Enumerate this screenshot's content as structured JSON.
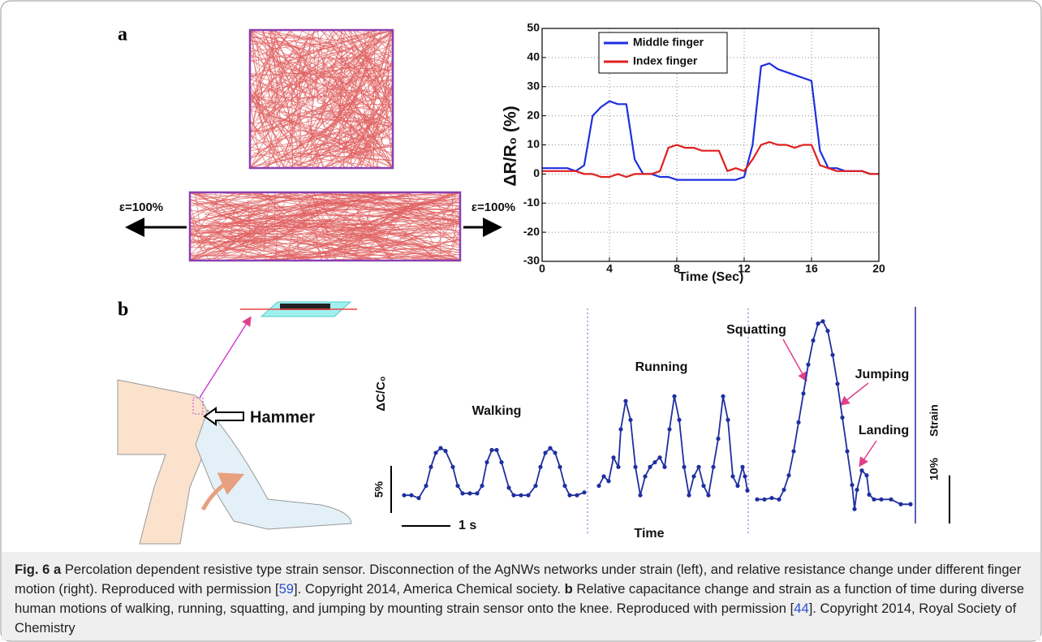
{
  "panel_labels": {
    "a": "a",
    "b": "b"
  },
  "panel_a_left": {
    "strain_left": "ε=100%",
    "strain_right": "ε=100%"
  },
  "panel_b_left": {
    "hammer": "Hammer"
  },
  "chart_data": [
    {
      "type": "line",
      "ylabel": "ΔR/R₀ (%)",
      "xlabel": "Time (Sec)",
      "x": [
        0,
        0.5,
        1,
        1.5,
        2,
        2.5,
        3,
        3.5,
        4,
        4.5,
        5,
        5.5,
        6,
        6.5,
        7,
        7.5,
        8,
        8.5,
        9,
        9.5,
        10,
        10.5,
        11,
        11.5,
        12,
        12.5,
        13,
        13.5,
        14,
        14.5,
        15,
        15.5,
        16,
        16.5,
        17,
        17.5,
        18,
        18.5,
        19,
        19.5,
        20
      ],
      "series": [
        {
          "name": "Middle finger",
          "color": "#1f2fe0",
          "values": [
            2,
            2,
            2,
            2,
            1,
            3,
            20,
            23,
            25,
            24,
            24,
            5,
            0,
            0,
            -1,
            -1,
            -2,
            -2,
            -2,
            -2,
            -2,
            -2,
            -2,
            -2,
            -1,
            10,
            37,
            38,
            36,
            35,
            34,
            33,
            32,
            8,
            2,
            2,
            1,
            1,
            1,
            0,
            0
          ]
        },
        {
          "name": "Index finger",
          "color": "#e01f1f",
          "values": [
            1,
            1,
            1,
            1,
            1,
            0,
            0,
            -1,
            -1,
            0,
            -1,
            0,
            0,
            0,
            1,
            9,
            10,
            9,
            9,
            8,
            8,
            8,
            1,
            2,
            1,
            5,
            10,
            11,
            10,
            10,
            9,
            10,
            10,
            3,
            2,
            1,
            1,
            1,
            1,
            0,
            0
          ]
        }
      ],
      "xlim": [
        0,
        20
      ],
      "xticks": [
        0,
        4,
        8,
        12,
        16,
        20
      ],
      "ylim": [
        -30,
        50
      ],
      "yticks": [
        -30,
        -20,
        -10,
        0,
        10,
        20,
        30,
        40,
        50
      ],
      "grid": true,
      "legend": "upper left"
    },
    {
      "type": "line",
      "ylabel": "ΔC/C₀",
      "y2label": "Strain",
      "xlabel": "Time",
      "xlim": [
        0,
        10.8
      ],
      "ylim": [
        -3,
        20
      ],
      "y2lim": [
        -5,
        40
      ],
      "xscale": {
        "value": 1,
        "label": "1 s"
      },
      "yscale": {
        "value": 5,
        "label": "5%"
      },
      "y2scale": {
        "value": 10,
        "label": "10%"
      },
      "series": [
        {
          "name": "Walking",
          "color": "#1f2f9f",
          "x": [
            0.3,
            0.45,
            0.6,
            0.75,
            0.85,
            0.95,
            1.05,
            1.15,
            1.3,
            1.4,
            1.5,
            1.65,
            1.8,
            1.9,
            2.0,
            2.1,
            2.2,
            2.3,
            2.45,
            2.55,
            2.7,
            2.85,
            3.0,
            3.1,
            3.2,
            3.3,
            3.4,
            3.5,
            3.6,
            3.7,
            3.85,
            4.0
          ],
          "values": [
            0,
            0,
            -0.3,
            1,
            3,
            4.5,
            5,
            4.7,
            3,
            1,
            0.2,
            0.2,
            0.2,
            1,
            3.5,
            4.8,
            4.8,
            3.5,
            0.8,
            0,
            0,
            0,
            1,
            3,
            4.5,
            5,
            4.5,
            3,
            1,
            0,
            0,
            0.3
          ]
        },
        {
          "name": "Running",
          "color": "#1f2f9f",
          "x": [
            4.3,
            4.4,
            4.5,
            4.6,
            4.7,
            4.75,
            4.85,
            4.95,
            5.05,
            5.15,
            5.25,
            5.35,
            5.45,
            5.55,
            5.65,
            5.75,
            5.85,
            5.95,
            6.05,
            6.15,
            6.25,
            6.35,
            6.45,
            6.55,
            6.65,
            6.75,
            6.85,
            6.95,
            7.05,
            7.15,
            7.25,
            7.3,
            7.35
          ],
          "values": [
            1,
            2,
            1.5,
            4,
            3,
            7,
            10,
            8,
            3,
            0,
            2,
            3,
            3.5,
            4,
            3,
            7,
            10.5,
            8,
            3,
            0,
            2,
            3,
            1,
            0,
            3,
            6,
            10.5,
            8,
            2,
            1,
            3,
            2,
            0.5
          ]
        },
        {
          "name": "Squatting",
          "color": "#1f2f9f",
          "axis": "y2",
          "x": [
            7.55,
            7.7,
            7.85,
            8.0,
            8.1,
            8.2,
            8.3,
            8.4,
            8.5,
            8.6,
            8.7,
            8.8,
            8.9,
            9.0,
            9.1,
            9.2,
            9.3,
            9.4,
            9.5,
            9.55,
            9.6,
            9.7,
            9.8,
            9.85,
            9.95,
            10.1,
            10.3,
            10.5,
            10.7
          ],
          "values": [
            0,
            0,
            0.3,
            0,
            2,
            5,
            10,
            16,
            22,
            28,
            33,
            36.5,
            37,
            35,
            30,
            24,
            17,
            10,
            3,
            -2,
            2,
            6,
            5,
            1,
            0,
            0,
            0,
            -1,
            -1
          ]
        }
      ],
      "annotations": [
        "Jumping",
        "Landing"
      ]
    }
  ],
  "caption": {
    "label": "Fig. 6",
    "a": "a",
    "a_text": "Percolation dependent resistive type strain sensor. Disconnection of the AgNWs networks under strain (left), and relative resistance change under different finger motion (right). Reproduced with permission [",
    "a_ref": "59",
    "a_end": "]. Copyright 2014, America Chemical society.",
    "b": "b",
    "b_text": "Relative capacitance change and strain as a function of time during diverse human motions of walking, running, squatting, and jumping by mounting strain sensor onto the knee. Reproduced with permission [",
    "b_ref": "44",
    "b_end": "]. Copyright 2014, Royal Society of Chemistry"
  }
}
